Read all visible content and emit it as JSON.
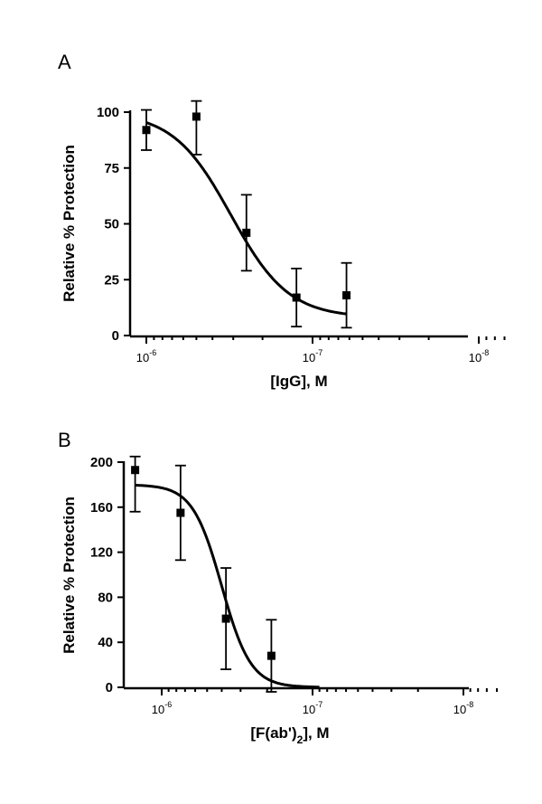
{
  "chart_data": [
    {
      "type": "scatter",
      "panel_label": "A",
      "xlabel": "[IgG], M",
      "ylabel": "Relative % Protection",
      "x_scale": "log",
      "x_direction": "decreasing",
      "xlim": [
        1.5e-06,
        7e-09
      ],
      "ylim": [
        0,
        100
      ],
      "yticks": [
        0,
        25,
        50,
        75,
        100
      ],
      "xticks": [
        {
          "value": 1e-06,
          "base": "10",
          "exp": "-6"
        },
        {
          "value": 1e-07,
          "base": "10",
          "exp": "-7"
        },
        {
          "value": 1e-08,
          "base": "10",
          "exp": "-8"
        }
      ],
      "points": [
        {
          "x": 1e-06,
          "y": 92,
          "err": 9
        },
        {
          "x": 5e-07,
          "y": 98,
          "err": 17
        },
        {
          "x": 2.5e-07,
          "y": 46,
          "err": 17
        },
        {
          "x": 1.25e-07,
          "y": 17,
          "err": 13
        },
        {
          "x": 6.25e-08,
          "y": 18,
          "err": 14.5
        }
      ],
      "fit": {
        "top": 100,
        "bottom": 8,
        "ic50": 3.1e-07,
        "hill": 2.5,
        "xrange": [
          1e-06,
          6.25e-08
        ]
      }
    },
    {
      "type": "scatter",
      "panel_label": "B",
      "xlabel_main": "[F(ab')",
      "xlabel_sub": "2",
      "xlabel_tail": "], M",
      "ylabel": "Relative % Protection",
      "x_scale": "log",
      "x_direction": "decreasing",
      "xlim": [
        1.8e-06,
        6e-09
      ],
      "ylim": [
        0,
        200
      ],
      "yticks": [
        0,
        40,
        80,
        120,
        160,
        200
      ],
      "xticks": [
        {
          "value": 1e-06,
          "base": "10",
          "exp": "-6"
        },
        {
          "value": 1e-07,
          "base": "10",
          "exp": "-7"
        },
        {
          "value": 1e-08,
          "base": "10",
          "exp": "-8"
        }
      ],
      "points": [
        {
          "x": 1.5e-06,
          "y": 193,
          "err": 37
        },
        {
          "x": 7.5e-07,
          "y": 155,
          "err": 42
        },
        {
          "x": 3.75e-07,
          "y": 61,
          "err": 45
        },
        {
          "x": 1.875e-07,
          "y": 28,
          "err": 32
        }
      ],
      "fit": {
        "top": 180,
        "bottom": 0,
        "ic50": 4e-07,
        "hill": 4.5,
        "xrange": [
          1.5e-06,
          9e-08
        ]
      }
    }
  ]
}
